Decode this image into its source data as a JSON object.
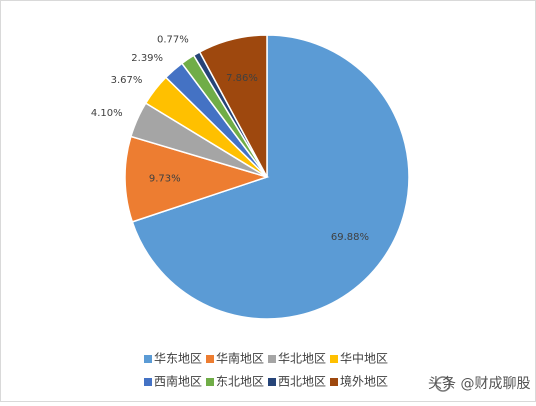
{
  "chart_data": {
    "type": "pie",
    "categories": [
      "华东地区",
      "华南地区",
      "华北地区",
      "华中地区",
      "西南地区",
      "东北地区",
      "西北地区",
      "境外地区"
    ],
    "values": [
      69.88,
      9.73,
      4.1,
      3.67,
      2.39,
      1.6,
      0.77,
      7.86
    ],
    "value_labels": [
      "69.88%",
      "9.73%",
      "4.10%",
      "3.67%",
      "2.39%",
      null,
      "0.77%",
      "7.86%"
    ],
    "colors": [
      "#5b9bd5",
      "#ed7d31",
      "#a5a5a5",
      "#ffc000",
      "#4472c4",
      "#70ad47",
      "#264478",
      "#9e480e"
    ],
    "watermark": "头条 @财成聊股"
  }
}
